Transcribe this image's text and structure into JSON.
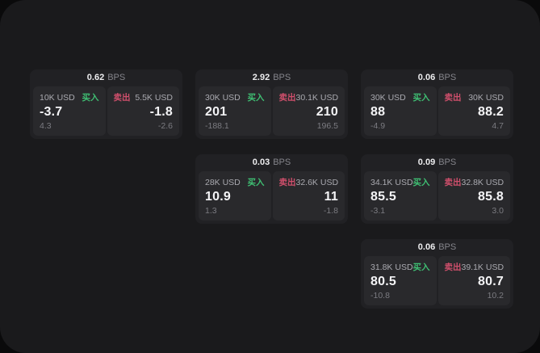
{
  "labels": {
    "bps_unit": "BPS",
    "buy": "买入",
    "sell": "卖出"
  },
  "accents": {
    "buy": "#3fbf73",
    "sell": "#d04f6c",
    "surface": "#1a1a1c",
    "card": "#212124",
    "panel": "#29292c",
    "backdrop": "#0a0a0b"
  },
  "cards": [
    {
      "row": 1,
      "col": 1,
      "bps": "0.62",
      "buy": {
        "amount": "10K USD",
        "price": "-3.7",
        "delta": "4.3"
      },
      "sell": {
        "amount": "5.5K USD",
        "price": "-1.8",
        "delta": "-2.6"
      }
    },
    {
      "row": 1,
      "col": 2,
      "bps": "2.92",
      "buy": {
        "amount": "30K USD",
        "price": "201",
        "delta": "-188.1"
      },
      "sell": {
        "amount": "30.1K USD",
        "price": "210",
        "delta": "196.5"
      }
    },
    {
      "row": 1,
      "col": 3,
      "bps": "0.06",
      "buy": {
        "amount": "30K USD",
        "price": "88",
        "delta": "-4.9"
      },
      "sell": {
        "amount": "30K USD",
        "price": "88.2",
        "delta": "4.7"
      }
    },
    {
      "row": 2,
      "col": 2,
      "bps": "0.03",
      "buy": {
        "amount": "28K USD",
        "price": "10.9",
        "delta": "1.3"
      },
      "sell": {
        "amount": "32.6K USD",
        "price": "11",
        "delta": "-1.8"
      }
    },
    {
      "row": 2,
      "col": 3,
      "bps": "0.09",
      "buy": {
        "amount": "34.1K USD",
        "price": "85.5",
        "delta": "-3.1"
      },
      "sell": {
        "amount": "32.8K USD",
        "price": "85.8",
        "delta": "3.0"
      }
    },
    {
      "row": 3,
      "col": 3,
      "bps": "0.06",
      "buy": {
        "amount": "31.8K USD",
        "price": "80.5",
        "delta": "-10.8"
      },
      "sell": {
        "amount": "39.1K USD",
        "price": "80.7",
        "delta": "10.2"
      }
    }
  ]
}
